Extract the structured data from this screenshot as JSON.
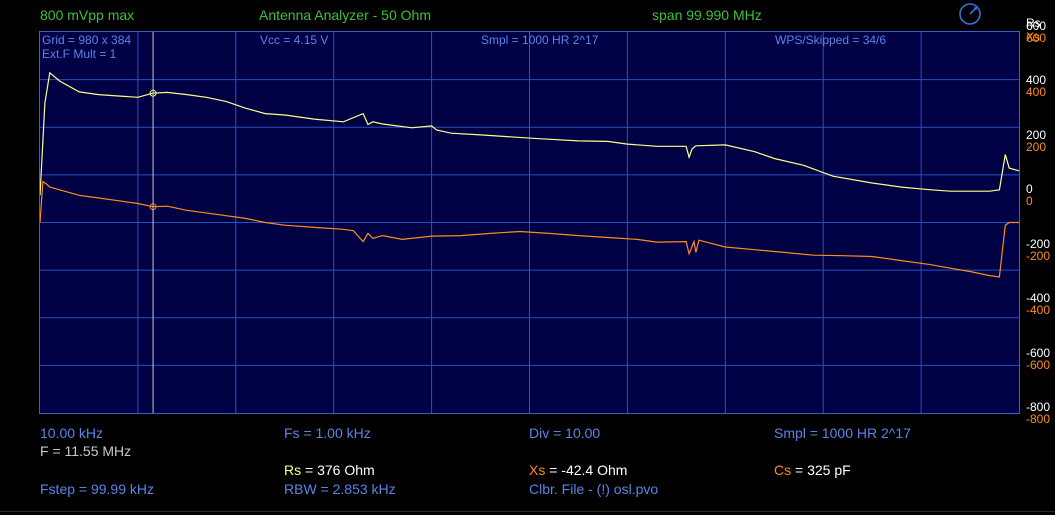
{
  "header": {
    "vpp": "800 mVpp max",
    "title": "Antenna Analyzer - 50 Ohm",
    "span": "span 99.990 MHz"
  },
  "info": {
    "grid": "Grid = 980 x 384",
    "extf": "Ext.F Mult = 1",
    "vcc": "Vcc = 4.15 V",
    "smpl": "Smpl = 1000 HR 2^17",
    "wps": "WPS/Skipped  = 34/6"
  },
  "legend": {
    "rs": "Rs",
    "xs": "Xs"
  },
  "axis": {
    "labels": [
      {
        "value": 600,
        "rs": "600",
        "xs": "600"
      },
      {
        "value": 400,
        "rs": "400",
        "xs": "400"
      },
      {
        "value": 200,
        "rs": "200",
        "xs": "200"
      },
      {
        "value": 0,
        "rs": "0",
        "xs": "0"
      },
      {
        "value": -200,
        "rs": "-200",
        "xs": "-200"
      },
      {
        "value": -400,
        "rs": "-400",
        "xs": "-400"
      },
      {
        "value": -600,
        "rs": "-600",
        "xs": "-600"
      },
      {
        "value": -800,
        "rs": "-800",
        "xs": "-800"
      }
    ]
  },
  "footer": {
    "start_freq": "10.00 kHz",
    "fs": "Fs = 1.00 kHz",
    "div": "Div = 10.00",
    "smpl": "Smpl = 1000 HR  2^17",
    "f": "F = 11.55 MHz",
    "rs_label": "Rs",
    "rs_value": " = 376 Ohm",
    "xs_label": "Xs",
    "xs_value": " = -42.4 Ohm",
    "cs_label": "Cs",
    "cs_value": " = 325 pF",
    "fstep": "Fstep = 99.99 kHz",
    "rbw": "RBW = 2.853 kHz",
    "clbr": "Clbr. File - (!) osl.pvo"
  },
  "colors": {
    "rs": "#ffff88",
    "xs": "#ff8c1a",
    "grid": "#2a50c0",
    "info": "#5c83e8",
    "header": "#3fbf3f",
    "cursor": "#c8c8c8"
  },
  "chart_data": {
    "type": "line",
    "x_range_mhz": [
      0.01,
      100.0
    ],
    "y_range": [
      -800,
      600
    ],
    "cursor_mhz": 11.55,
    "series": [
      {
        "name": "Rs",
        "x": [
          0.0,
          0.5,
          1.0,
          2.0,
          4.0,
          6.0,
          8.0,
          10.0,
          11.5,
          13.0,
          15.0,
          17.0,
          19.0,
          21.0,
          23.0,
          25.0,
          28.0,
          31.0,
          33.0,
          33.5,
          34.0,
          35.0,
          38.0,
          40.0,
          40.5,
          42.0,
          45.0,
          48.0,
          51.0,
          55.0,
          58.0,
          60.0,
          63.0,
          66.0,
          66.3,
          66.6,
          67.0,
          70.0,
          73.0,
          75.0,
          78.0,
          81.0,
          85.0,
          88.0,
          91.0,
          93.0,
          95.0,
          97.0,
          98.0,
          98.6,
          99.0,
          100.0
        ],
        "y": [
          0,
          340,
          450,
          420,
          380,
          370,
          365,
          360,
          375,
          378,
          370,
          360,
          345,
          320,
          300,
          295,
          280,
          270,
          300,
          260,
          270,
          262,
          248,
          255,
          240,
          228,
          222,
          215,
          208,
          200,
          198,
          188,
          180,
          180,
          140,
          170,
          182,
          185,
          160,
          135,
          110,
          70,
          45,
          30,
          20,
          15,
          15,
          15,
          20,
          150,
          100,
          90
        ]
      },
      {
        "name": "Xs",
        "x": [
          0.0,
          0.3,
          0.7,
          1.0,
          2.0,
          4.0,
          6.0,
          8.0,
          10.0,
          11.5,
          13.0,
          15.0,
          18.0,
          21.0,
          23.0,
          25.0,
          28.0,
          31.0,
          32.0,
          33.0,
          33.5,
          34.0,
          35.0,
          37.0,
          40.0,
          43.0,
          46.0,
          49.0,
          52.0,
          55.0,
          58.0,
          61.0,
          63.0,
          66.0,
          66.3,
          66.8,
          67.0,
          67.3,
          70.0,
          73.0,
          76.0,
          79.0,
          82.0,
          85.0,
          88.0,
          91.0,
          93.0,
          95.0,
          97.0,
          98.0,
          98.6,
          99.0,
          100.0
        ],
        "y": [
          -100,
          50,
          40,
          30,
          20,
          0,
          -10,
          -20,
          -30,
          -42,
          -40,
          -55,
          -70,
          -85,
          -100,
          -110,
          -118,
          -125,
          -130,
          -170,
          -140,
          -158,
          -148,
          -162,
          -150,
          -148,
          -140,
          -133,
          -140,
          -148,
          -155,
          -162,
          -172,
          -170,
          -215,
          -170,
          -210,
          -165,
          -190,
          -200,
          -210,
          -220,
          -222,
          -225,
          -240,
          -255,
          -268,
          -280,
          -295,
          -300,
          -110,
          -100,
          -100
        ]
      }
    ]
  }
}
